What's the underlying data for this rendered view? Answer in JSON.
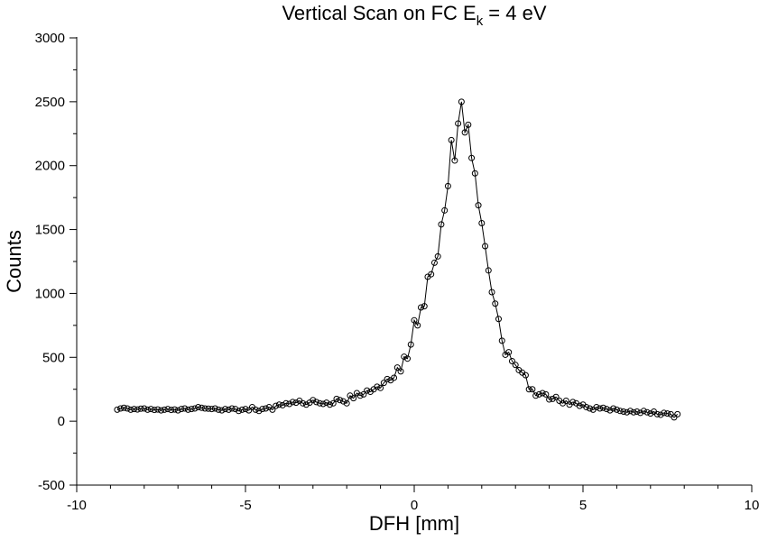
{
  "chart_data": {
    "type": "scatter_line",
    "title": {
      "main": "Vertical Scan on FC E",
      "sub": "k",
      "end": " = 4 eV"
    },
    "xlabel": "DFH [mm]",
    "ylabel": "Counts",
    "xlim": [
      -10,
      10
    ],
    "ylim": [
      -500,
      3000
    ],
    "xticks": [
      -10,
      -5,
      0,
      5,
      10
    ],
    "xminorticks": [
      -9,
      -8,
      -7,
      -6,
      -4,
      -3,
      -2,
      -1,
      1,
      2,
      3,
      4,
      6,
      7,
      8,
      9
    ],
    "yticks": [
      -500,
      0,
      500,
      1000,
      1500,
      2000,
      2500,
      3000
    ],
    "yminorticks": [
      -250,
      250,
      750,
      1250,
      1750,
      2250,
      2750
    ],
    "color": "#000000",
    "x": [
      -8.8,
      -8.7,
      -8.6,
      -8.5,
      -8.4,
      -8.3,
      -8.2,
      -8.1,
      -8.0,
      -7.9,
      -7.8,
      -7.7,
      -7.6,
      -7.5,
      -7.4,
      -7.3,
      -7.2,
      -7.1,
      -7.0,
      -6.9,
      -6.8,
      -6.7,
      -6.6,
      -6.5,
      -6.4,
      -6.3,
      -6.2,
      -6.1,
      -6.0,
      -5.9,
      -5.8,
      -5.7,
      -5.6,
      -5.5,
      -5.4,
      -5.3,
      -5.2,
      -5.1,
      -5.0,
      -4.9,
      -4.8,
      -4.7,
      -4.6,
      -4.5,
      -4.4,
      -4.3,
      -4.2,
      -4.1,
      -4.0,
      -3.9,
      -3.8,
      -3.7,
      -3.6,
      -3.5,
      -3.4,
      -3.3,
      -3.2,
      -3.1,
      -3.0,
      -2.9,
      -2.8,
      -2.7,
      -2.6,
      -2.5,
      -2.4,
      -2.3,
      -2.2,
      -2.1,
      -2.0,
      -1.9,
      -1.8,
      -1.7,
      -1.6,
      -1.5,
      -1.4,
      -1.3,
      -1.2,
      -1.1,
      -1.0,
      -0.9,
      -0.8,
      -0.7,
      -0.6,
      -0.5,
      -0.4,
      -0.3,
      -0.2,
      -0.1,
      0.0,
      0.1,
      0.2,
      0.3,
      0.4,
      0.5,
      0.6,
      0.7,
      0.8,
      0.9,
      1.0,
      1.1,
      1.2,
      1.3,
      1.4,
      1.5,
      1.6,
      1.7,
      1.8,
      1.9,
      2.0,
      2.1,
      2.2,
      2.3,
      2.4,
      2.5,
      2.6,
      2.7,
      2.8,
      2.9,
      3.0,
      3.1,
      3.2,
      3.3,
      3.4,
      3.5,
      3.6,
      3.7,
      3.8,
      3.9,
      4.0,
      4.1,
      4.2,
      4.3,
      4.4,
      4.5,
      4.6,
      4.7,
      4.8,
      4.9,
      5.0,
      5.1,
      5.2,
      5.3,
      5.4,
      5.5,
      5.6,
      5.7,
      5.8,
      5.9,
      6.0,
      6.1,
      6.2,
      6.3,
      6.4,
      6.5,
      6.6,
      6.7,
      6.8,
      6.9,
      7.0,
      7.1,
      7.2,
      7.3,
      7.4,
      7.5,
      7.6,
      7.7,
      7.8
    ],
    "values": [
      90,
      100,
      105,
      100,
      90,
      95,
      92,
      98,
      100,
      90,
      95,
      88,
      92,
      85,
      90,
      95,
      88,
      92,
      85,
      95,
      100,
      90,
      95,
      100,
      110,
      105,
      100,
      98,
      95,
      100,
      90,
      85,
      95,
      90,
      100,
      95,
      80,
      90,
      95,
      85,
      110,
      90,
      80,
      95,
      100,
      110,
      90,
      120,
      130,
      125,
      140,
      135,
      150,
      145,
      160,
      140,
      130,
      145,
      165,
      150,
      140,
      135,
      145,
      130,
      140,
      175,
      165,
      155,
      140,
      200,
      180,
      220,
      200,
      210,
      240,
      230,
      250,
      270,
      260,
      300,
      330,
      320,
      340,
      420,
      390,
      505,
      490,
      600,
      790,
      750,
      890,
      900,
      1130,
      1150,
      1240,
      1290,
      1540,
      1650,
      1840,
      2200,
      2040,
      2330,
      2500,
      2260,
      2320,
      2060,
      1940,
      1690,
      1550,
      1370,
      1180,
      1010,
      920,
      800,
      630,
      520,
      540,
      470,
      440,
      400,
      380,
      360,
      250,
      250,
      200,
      210,
      220,
      210,
      170,
      175,
      190,
      160,
      140,
      160,
      130,
      150,
      140,
      120,
      130,
      110,
      100,
      90,
      110,
      100,
      105,
      95,
      85,
      100,
      90,
      80,
      75,
      70,
      80,
      70,
      75,
      65,
      80,
      70,
      60,
      75,
      55,
      50,
      65,
      60,
      55,
      30,
      55
    ]
  }
}
